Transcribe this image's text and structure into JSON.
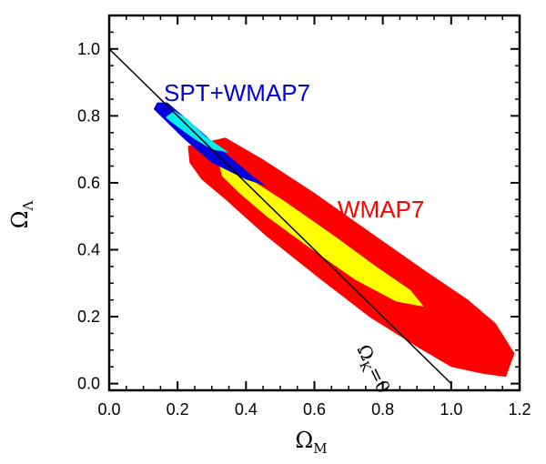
{
  "chart_data": {
    "type": "contour",
    "title": "",
    "xlabel": "Ω",
    "xlabel_sub": "M",
    "ylabel": "Ω",
    "ylabel_sub": "Λ",
    "xlim": [
      0.0,
      1.2
    ],
    "ylim": [
      -0.02,
      1.1
    ],
    "xticks": [
      "0.0",
      "0.2",
      "0.4",
      "0.6",
      "0.8",
      "1.0",
      "1.2"
    ],
    "yticks": [
      "0.0",
      "0.2",
      "0.4",
      "0.6",
      "0.8",
      "1.0"
    ],
    "xtick_values": [
      0.0,
      0.2,
      0.4,
      0.6,
      0.8,
      1.0,
      1.2
    ],
    "ytick_values": [
      0.0,
      0.2,
      0.4,
      0.6,
      0.8,
      1.0
    ],
    "colors": {
      "wmap_95": "#ff0000",
      "wmap_68": "#ffff00",
      "spt_95": "#0000dd",
      "spt_68": "#00eeee",
      "axis": "#000000"
    },
    "flat_line": {
      "label": "Ω",
      "label_sub": "K",
      "label_rest": "=0",
      "x": [
        0.0,
        1.0
      ],
      "y": [
        1.0,
        0.0
      ]
    },
    "series": [
      {
        "name": "WMAP7",
        "level": "95%",
        "color": "#ff0000",
        "polygon": [
          [
            0.23,
            0.71
          ],
          [
            0.34,
            0.735
          ],
          [
            0.45,
            0.67
          ],
          [
            0.6,
            0.57
          ],
          [
            0.78,
            0.44
          ],
          [
            0.92,
            0.34
          ],
          [
            1.05,
            0.25
          ],
          [
            1.13,
            0.18
          ],
          [
            1.185,
            0.09
          ],
          [
            1.16,
            0.02
          ],
          [
            1.09,
            0.03
          ],
          [
            1.0,
            0.05
          ],
          [
            0.9,
            0.11
          ],
          [
            0.76,
            0.2
          ],
          [
            0.62,
            0.31
          ],
          [
            0.46,
            0.44
          ],
          [
            0.34,
            0.55
          ],
          [
            0.27,
            0.61
          ],
          [
            0.235,
            0.66
          ]
        ]
      },
      {
        "name": "WMAP7",
        "level": "68%",
        "color": "#ffff00",
        "polygon": [
          [
            0.32,
            0.66
          ],
          [
            0.4,
            0.62
          ],
          [
            0.52,
            0.54
          ],
          [
            0.66,
            0.44
          ],
          [
            0.78,
            0.35
          ],
          [
            0.88,
            0.28
          ],
          [
            0.92,
            0.23
          ],
          [
            0.84,
            0.245
          ],
          [
            0.72,
            0.31
          ],
          [
            0.58,
            0.41
          ],
          [
            0.46,
            0.5
          ],
          [
            0.38,
            0.57
          ],
          [
            0.33,
            0.62
          ]
        ]
      },
      {
        "name": "SPT+WMAP7",
        "level": "95%",
        "color": "#0000dd",
        "polygon": [
          [
            0.14,
            0.84
          ],
          [
            0.17,
            0.84
          ],
          [
            0.25,
            0.77
          ],
          [
            0.35,
            0.68
          ],
          [
            0.42,
            0.62
          ],
          [
            0.46,
            0.59
          ],
          [
            0.4,
            0.61
          ],
          [
            0.3,
            0.66
          ],
          [
            0.22,
            0.73
          ],
          [
            0.16,
            0.79
          ],
          [
            0.13,
            0.82
          ]
        ]
      },
      {
        "name": "SPT+WMAP7",
        "level": "68%",
        "color": "#00eeee",
        "polygon": [
          [
            0.17,
            0.8
          ],
          [
            0.19,
            0.815
          ],
          [
            0.23,
            0.79
          ],
          [
            0.28,
            0.74
          ],
          [
            0.35,
            0.69
          ],
          [
            0.3,
            0.7
          ],
          [
            0.25,
            0.73
          ],
          [
            0.19,
            0.775
          ],
          [
            0.165,
            0.795
          ]
        ]
      }
    ],
    "annotations": [
      {
        "text": "SPT+WMAP7",
        "color": "#0000dd",
        "x": 0.17,
        "y": 0.82
      },
      {
        "text": "WMAP7",
        "color": "#ff0000",
        "x": 0.68,
        "y": 0.48
      }
    ]
  }
}
